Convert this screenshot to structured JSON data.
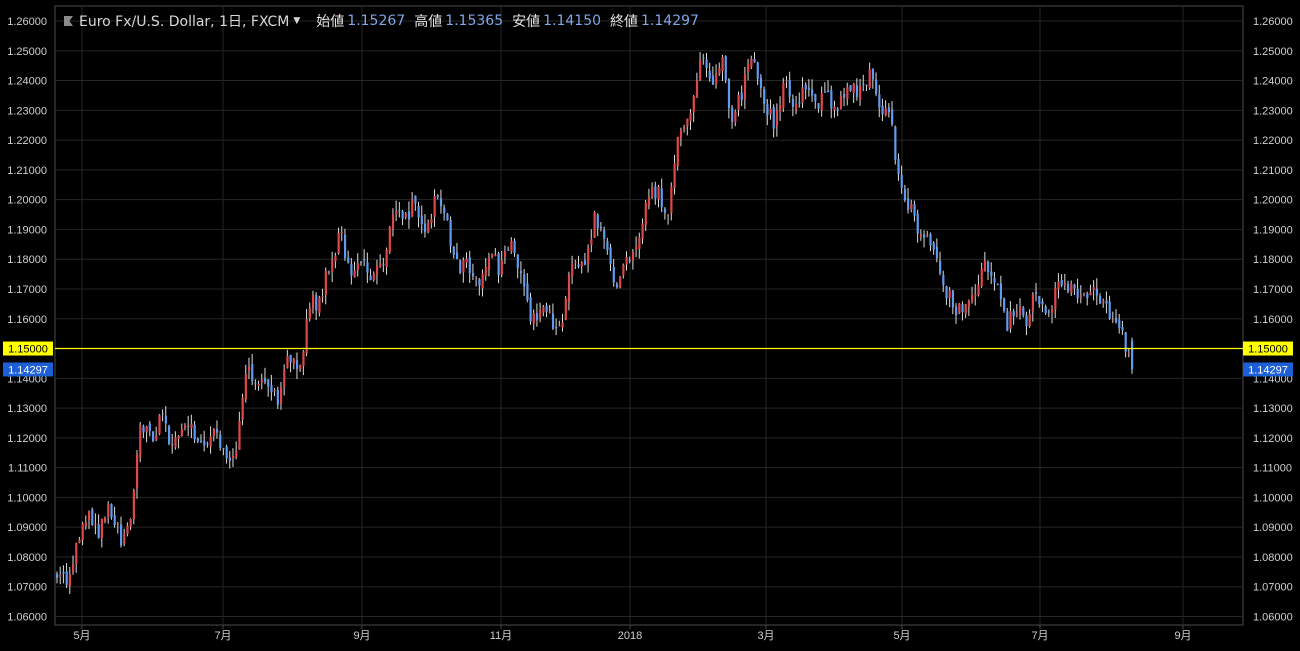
{
  "header": {
    "symbol": "Euro Fx/U.S. Dollar, 1日, FXCM",
    "open_label": "始値",
    "open_value": "1.15267",
    "high_label": "高値",
    "high_value": "1.15365",
    "low_label": "安値",
    "low_value": "1.14150",
    "close_label": "終値",
    "close_value": "1.14297"
  },
  "colors": {
    "up": "#e04747",
    "down": "#5f9bf0",
    "grid": "#262626",
    "axis": "#4a4a4a",
    "text": "#cfcfcf",
    "hline": "#ffff00",
    "price_tag": "#1c5fd6"
  },
  "chart_data": {
    "type": "candlestick",
    "y_ticks": [
      "1.06000",
      "1.07000",
      "1.08000",
      "1.09000",
      "1.10000",
      "1.11000",
      "1.12000",
      "1.13000",
      "1.14000",
      "1.15000",
      "1.16000",
      "1.17000",
      "1.18000",
      "1.19000",
      "1.20000",
      "1.21000",
      "1.22000",
      "1.23000",
      "1.24000",
      "1.25000",
      "1.26000"
    ],
    "ylim": [
      1.06,
      1.26
    ],
    "x_ticks": [
      "5月",
      "7月",
      "9月",
      "11月",
      "2018",
      "3月",
      "5月",
      "7月",
      "9月"
    ],
    "horizontal_line": {
      "value": 1.15,
      "label": "1.15000"
    },
    "last_price": {
      "value": 1.14297,
      "label": "1.14297"
    },
    "close_path": [
      1.074,
      1.071,
      1.088,
      1.093,
      1.088,
      1.098,
      1.086,
      1.092,
      1.126,
      1.12,
      1.127,
      1.115,
      1.128,
      1.122,
      1.118,
      1.122,
      1.112,
      1.118,
      1.143,
      1.14,
      1.138,
      1.131,
      1.148,
      1.141,
      1.165,
      1.166,
      1.181,
      1.188,
      1.172,
      1.181,
      1.172,
      1.18,
      1.196,
      1.193,
      1.2,
      1.188,
      1.202,
      1.191,
      1.177,
      1.18,
      1.168,
      1.183,
      1.176,
      1.184,
      1.176,
      1.16,
      1.164,
      1.158,
      1.161,
      1.181,
      1.179,
      1.194,
      1.186,
      1.172,
      1.178,
      1.186,
      1.2,
      1.203,
      1.195,
      1.224,
      1.228,
      1.248,
      1.239,
      1.248,
      1.228,
      1.235,
      1.251,
      1.235,
      1.225,
      1.241,
      1.231,
      1.24,
      1.232,
      1.237,
      1.228,
      1.239,
      1.235,
      1.242,
      1.232,
      1.228,
      1.204,
      1.197,
      1.188,
      1.183,
      1.172,
      1.165,
      1.161,
      1.168,
      1.179,
      1.172,
      1.158,
      1.163,
      1.16,
      1.169,
      1.163,
      1.17,
      1.172,
      1.165,
      1.17,
      1.165,
      1.161,
      1.156,
      1.14297
    ]
  }
}
